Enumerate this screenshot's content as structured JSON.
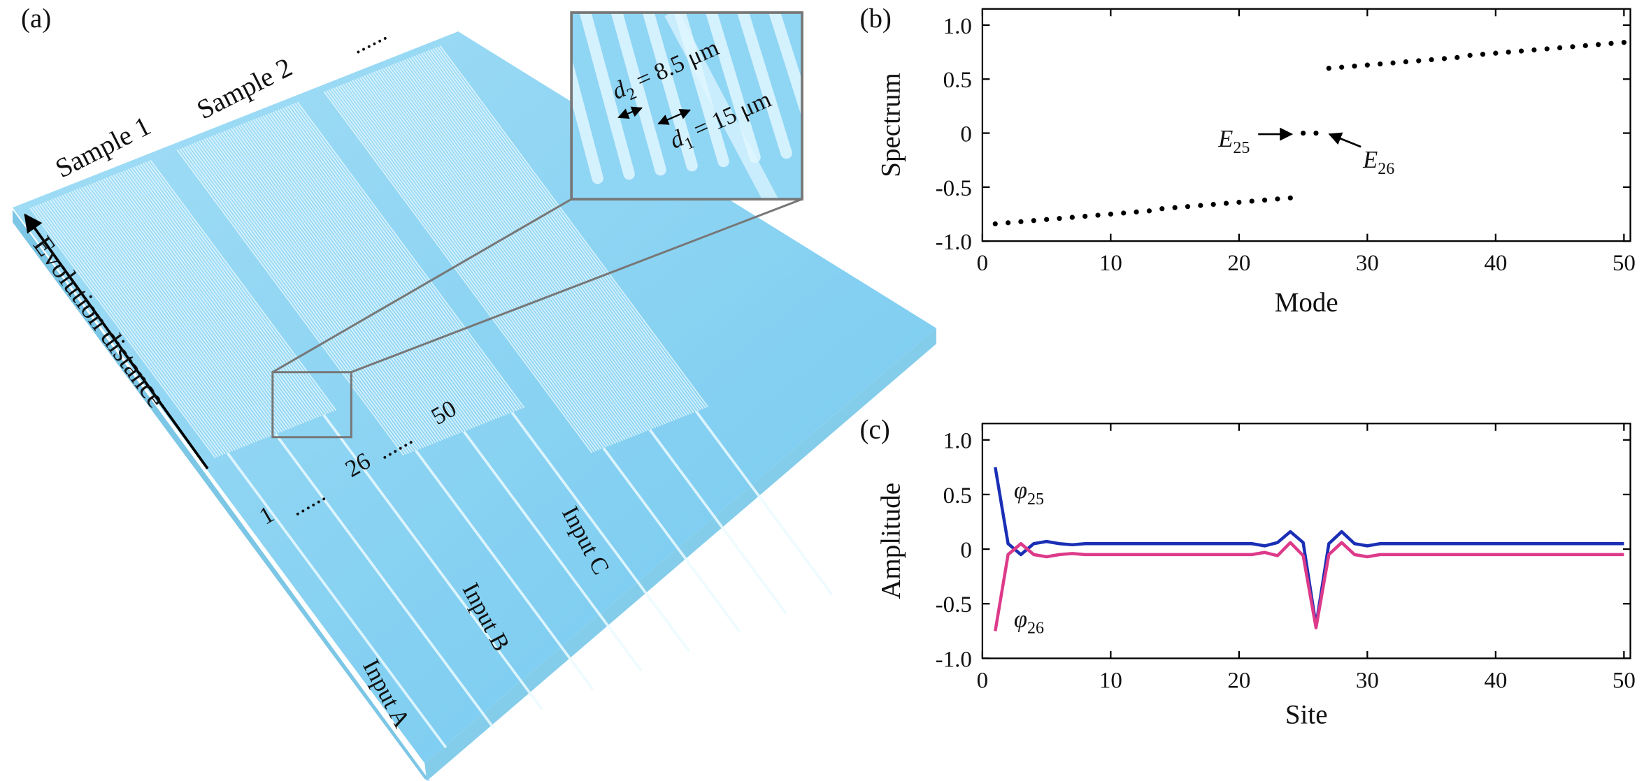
{
  "panel_labels": [
    "(a)",
    "(b)",
    "(c)"
  ],
  "diagram": {
    "samples": [
      "Sample 1",
      "Sample 2",
      "......"
    ],
    "axis_label": "Evolution distance",
    "sites": [
      "1",
      "......",
      "26",
      "......",
      "50"
    ],
    "inputs": [
      "Input A",
      "Input B",
      "Input C"
    ],
    "inset": {
      "d2": {
        "symbol": "d",
        "subscript": "2",
        "text": " = 8.5 μm"
      },
      "d1": {
        "symbol": "d",
        "subscript": "1",
        "text": " = 15 μm"
      }
    }
  },
  "chart_data": [
    {
      "type": "scatter",
      "xlabel": "Mode",
      "ylabel": "Spectrum",
      "color": "#000000",
      "x": [
        1,
        2,
        3,
        4,
        5,
        6,
        7,
        8,
        9,
        10,
        11,
        12,
        13,
        14,
        15,
        16,
        17,
        18,
        19,
        20,
        21,
        22,
        23,
        24,
        25,
        26,
        27,
        28,
        29,
        30,
        31,
        32,
        33,
        34,
        35,
        36,
        37,
        38,
        39,
        40,
        41,
        42,
        43,
        44,
        45,
        46,
        47,
        48,
        49,
        50
      ],
      "values": [
        -0.84,
        -0.83,
        -0.82,
        -0.81,
        -0.8,
        -0.79,
        -0.78,
        -0.77,
        -0.76,
        -0.75,
        -0.74,
        -0.73,
        -0.72,
        -0.7,
        -0.69,
        -0.68,
        -0.67,
        -0.66,
        -0.65,
        -0.64,
        -0.63,
        -0.62,
        -0.61,
        -0.6,
        0,
        0,
        0.6,
        0.61,
        0.62,
        0.63,
        0.64,
        0.65,
        0.66,
        0.67,
        0.68,
        0.69,
        0.7,
        0.72,
        0.73,
        0.74,
        0.75,
        0.76,
        0.77,
        0.78,
        0.79,
        0.8,
        0.81,
        0.82,
        0.83,
        0.84
      ],
      "xlim": [
        0,
        50.5
      ],
      "xticks": [
        0,
        10,
        20,
        30,
        40,
        50
      ],
      "ylim": [
        -1,
        1.15
      ],
      "yticks": [
        {
          "value": 1,
          "label": "1.0"
        },
        0.5,
        0,
        -0.5,
        {
          "value": -1,
          "label": "-1.0"
        }
      ],
      "annotations": [
        {
          "symbol": "E",
          "subscript": "25"
        },
        {
          "symbol": "E",
          "subscript": "26"
        }
      ]
    },
    {
      "type": "line",
      "xlabel": "Site",
      "ylabel": "Amplitude",
      "x": [
        1,
        2,
        3,
        4,
        5,
        6,
        7,
        8,
        9,
        10,
        11,
        12,
        13,
        14,
        15,
        16,
        17,
        18,
        19,
        20,
        21,
        22,
        23,
        24,
        25,
        26,
        27,
        28,
        29,
        30,
        31,
        32,
        33,
        34,
        35,
        36,
        37,
        38,
        39,
        40,
        41,
        42,
        43,
        44,
        45,
        46,
        47,
        48,
        49,
        50
      ],
      "series": [
        {
          "color": "#1a2fb5",
          "label": {
            "symbol": "φ",
            "subscript": "25"
          },
          "values": [
            0.75,
            0.05,
            -0.05,
            0.05,
            0.07,
            0.05,
            0.04,
            0.05,
            0.05,
            0.05,
            0.05,
            0.05,
            0.05,
            0.05,
            0.05,
            0.05,
            0.05,
            0.05,
            0.05,
            0.05,
            0.05,
            0.03,
            0.06,
            0.16,
            0.06,
            -0.7,
            0.05,
            0.16,
            0.05,
            0.03,
            0.05,
            0.05,
            0.05,
            0.05,
            0.05,
            0.05,
            0.05,
            0.05,
            0.05,
            0.05,
            0.05,
            0.05,
            0.05,
            0.05,
            0.05,
            0.05,
            0.05,
            0.05,
            0.05,
            0.05
          ]
        },
        {
          "color": "#dd3a8a",
          "label": {
            "symbol": "φ",
            "subscript": "26"
          },
          "values": [
            -0.75,
            -0.05,
            0.05,
            -0.05,
            -0.07,
            -0.05,
            -0.04,
            -0.05,
            -0.05,
            -0.05,
            -0.05,
            -0.05,
            -0.05,
            -0.05,
            -0.05,
            -0.05,
            -0.05,
            -0.05,
            -0.05,
            -0.05,
            -0.05,
            -0.03,
            -0.06,
            0.06,
            -0.06,
            -0.72,
            -0.05,
            0.06,
            -0.05,
            -0.07,
            -0.05,
            -0.05,
            -0.05,
            -0.05,
            -0.05,
            -0.05,
            -0.05,
            -0.05,
            -0.05,
            -0.05,
            -0.05,
            -0.05,
            -0.05,
            -0.05,
            -0.05,
            -0.05,
            -0.05,
            -0.05,
            -0.05,
            -0.05
          ]
        }
      ],
      "xlim": [
        0,
        50.5
      ],
      "xticks": [
        0,
        10,
        20,
        30,
        40,
        50
      ],
      "ylim": [
        -1,
        1.15
      ],
      "yticks": [
        {
          "value": 1,
          "label": "1.0"
        },
        0.5,
        0,
        -0.5,
        {
          "value": -1,
          "label": "-1.0"
        }
      ]
    }
  ]
}
